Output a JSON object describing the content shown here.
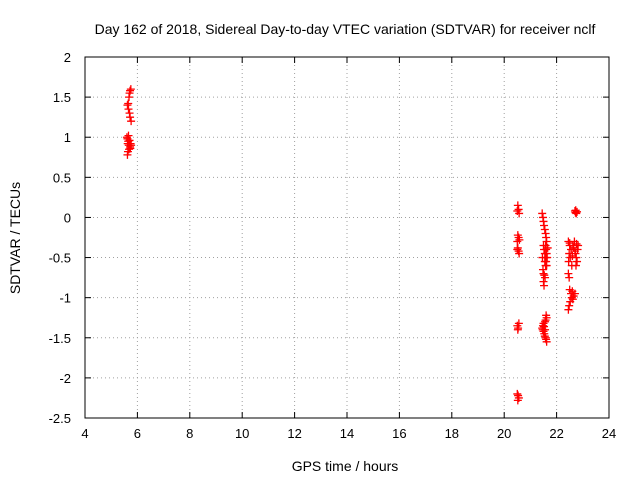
{
  "chart_data": {
    "type": "scatter",
    "title": "Day 162 of 2018, Sidereal Day-to-day VTEC variation (SDTVAR) for receiver nclf",
    "xlabel": "GPS time / hours",
    "ylabel": "SDTVAR / TECUs",
    "xlim": [
      4,
      24
    ],
    "ylim": [
      -2.5,
      2
    ],
    "xticks": [
      4,
      6,
      8,
      10,
      12,
      14,
      16,
      18,
      20,
      22,
      24
    ],
    "yticks": [
      2,
      1.5,
      1,
      0.5,
      0,
      -0.5,
      -1,
      -1.5,
      -2,
      -2.5
    ],
    "xtick_labels": [
      "4",
      "6",
      "8",
      "10",
      "12",
      "14",
      "16",
      "18",
      "20",
      "22",
      "24"
    ],
    "ytick_labels": [
      "2",
      "1.5",
      "1",
      "0.5",
      "0",
      "-0.5",
      "-1",
      "-1.5",
      "-2",
      "-2.5"
    ],
    "grid": true,
    "marker": "+",
    "color": "#ff0000",
    "series": [
      {
        "name": "SDTVAR",
        "points": [
          [
            5.62,
            1.4
          ],
          [
            5.65,
            1.42
          ],
          [
            5.68,
            1.5
          ],
          [
            5.7,
            1.55
          ],
          [
            5.72,
            1.58
          ],
          [
            5.75,
            1.6
          ],
          [
            5.66,
            1.35
          ],
          [
            5.7,
            1.3
          ],
          [
            5.72,
            1.25
          ],
          [
            5.76,
            1.2
          ],
          [
            5.6,
            1.0
          ],
          [
            5.62,
            0.98
          ],
          [
            5.65,
            0.95
          ],
          [
            5.63,
            0.92
          ],
          [
            5.67,
            0.9
          ],
          [
            5.7,
            0.96
          ],
          [
            5.72,
            0.88
          ],
          [
            5.68,
            0.85
          ],
          [
            5.64,
            0.82
          ],
          [
            5.62,
            0.78
          ],
          [
            5.74,
            0.92
          ],
          [
            5.76,
            0.9
          ],
          [
            5.73,
            0.86
          ],
          [
            5.66,
            1.02
          ],
          [
            20.52,
            0.15
          ],
          [
            20.55,
            0.1
          ],
          [
            20.57,
            0.05
          ],
          [
            20.5,
            0.08
          ],
          [
            20.52,
            -0.22
          ],
          [
            20.55,
            -0.25
          ],
          [
            20.58,
            -0.28
          ],
          [
            20.5,
            -0.3
          ],
          [
            20.52,
            -0.38
          ],
          [
            20.55,
            -0.42
          ],
          [
            20.57,
            -0.45
          ],
          [
            20.5,
            -0.4
          ],
          [
            20.5,
            -1.35
          ],
          [
            20.53,
            -1.38
          ],
          [
            20.56,
            -1.32
          ],
          [
            20.52,
            -1.4
          ],
          [
            20.5,
            -2.2
          ],
          [
            20.53,
            -2.22
          ],
          [
            20.56,
            -2.25
          ],
          [
            20.52,
            -2.28
          ],
          [
            21.45,
            0.05
          ],
          [
            21.48,
            0.0
          ],
          [
            21.5,
            -0.05
          ],
          [
            21.52,
            -0.1
          ],
          [
            21.55,
            -0.15
          ],
          [
            21.58,
            -0.2
          ],
          [
            21.6,
            -0.25
          ],
          [
            21.62,
            -0.3
          ],
          [
            21.5,
            -0.35
          ],
          [
            21.52,
            -0.4
          ],
          [
            21.55,
            -0.45
          ],
          [
            21.58,
            -0.5
          ],
          [
            21.6,
            -0.55
          ],
          [
            21.62,
            -0.6
          ],
          [
            21.48,
            -0.65
          ],
          [
            21.5,
            -0.7
          ],
          [
            21.53,
            -0.72
          ],
          [
            21.56,
            -0.75
          ],
          [
            21.5,
            -0.8
          ],
          [
            21.52,
            -0.85
          ],
          [
            21.55,
            -0.55
          ],
          [
            21.58,
            -0.6
          ],
          [
            21.46,
            -0.5
          ],
          [
            21.62,
            -0.45
          ],
          [
            21.58,
            -0.35
          ],
          [
            21.6,
            -0.4
          ],
          [
            21.64,
            -0.5
          ],
          [
            21.66,
            -0.38
          ],
          [
            21.6,
            -1.22
          ],
          [
            21.62,
            -1.25
          ],
          [
            21.58,
            -1.28
          ],
          [
            21.56,
            -1.3
          ],
          [
            21.5,
            -1.32
          ],
          [
            21.48,
            -1.35
          ],
          [
            21.45,
            -1.38
          ],
          [
            21.47,
            -1.4
          ],
          [
            21.5,
            -1.42
          ],
          [
            21.53,
            -1.45
          ],
          [
            21.55,
            -1.48
          ],
          [
            21.58,
            -1.5
          ],
          [
            21.6,
            -1.52
          ],
          [
            21.62,
            -1.55
          ],
          [
            21.52,
            -1.36
          ],
          [
            21.56,
            -1.4
          ],
          [
            22.45,
            -0.3
          ],
          [
            22.5,
            -0.35
          ],
          [
            22.55,
            -0.4
          ],
          [
            22.48,
            -0.45
          ],
          [
            22.52,
            -0.5
          ],
          [
            22.46,
            -0.55
          ],
          [
            22.58,
            -0.6
          ],
          [
            22.5,
            -0.32
          ],
          [
            22.62,
            -0.35
          ],
          [
            22.65,
            -0.38
          ],
          [
            22.68,
            -0.3
          ],
          [
            22.7,
            -0.42
          ],
          [
            22.72,
            -0.45
          ],
          [
            22.75,
            -0.5
          ],
          [
            22.78,
            -0.55
          ],
          [
            22.8,
            -0.4
          ],
          [
            22.82,
            -0.35
          ],
          [
            22.74,
            -0.6
          ],
          [
            22.76,
            -0.33
          ],
          [
            22.6,
            -0.48
          ],
          [
            22.45,
            -0.7
          ],
          [
            22.48,
            -0.75
          ],
          [
            22.5,
            -0.9
          ],
          [
            22.55,
            -0.95
          ],
          [
            22.58,
            -1.0
          ],
          [
            22.62,
            -1.02
          ],
          [
            22.65,
            -0.98
          ],
          [
            22.7,
            -0.95
          ],
          [
            22.52,
            -1.05
          ],
          [
            22.48,
            -1.1
          ],
          [
            22.45,
            -1.15
          ],
          [
            22.6,
            -0.92
          ],
          [
            22.7,
            0.08
          ],
          [
            22.72,
            0.06
          ],
          [
            22.75,
            0.05
          ],
          [
            22.78,
            0.07
          ],
          [
            22.73,
            0.09
          ]
        ]
      }
    ]
  }
}
